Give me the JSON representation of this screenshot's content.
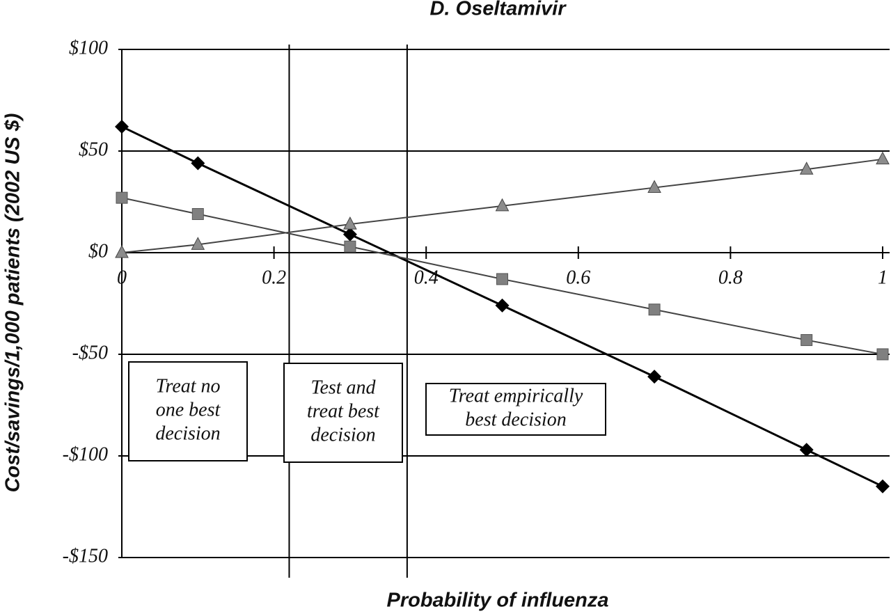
{
  "chart_data": {
    "type": "line",
    "title": "D. Oseltamivir",
    "x_label": "Probability of influenza",
    "y_label": "Cost/savings/1,000 patients (2002 US $)",
    "x": [
      0,
      0.1,
      0.3,
      0.5,
      0.7,
      0.9,
      1
    ],
    "series": [
      {
        "color": "#000000",
        "marker": "diamond",
        "values": [
          62,
          44,
          9,
          -26,
          -61,
          -97,
          -115
        ]
      },
      {
        "color": "#808080",
        "marker": "square",
        "values": [
          27,
          19,
          3,
          -13,
          -28,
          -43,
          -50
        ]
      },
      {
        "color": "#8c8c8c",
        "marker": "triangle",
        "values": [
          0,
          4,
          14,
          23,
          32,
          41,
          46
        ]
      }
    ],
    "xlim": [
      0,
      1
    ],
    "xticks": [
      0,
      0.2,
      0.4,
      0.6,
      0.8,
      1
    ],
    "ylim": [
      -150,
      100
    ],
    "yticks": [
      {
        "value": -150,
        "label": "-$150"
      },
      {
        "value": -100,
        "label": "-$100"
      },
      {
        "value": -50,
        "label": "-$50"
      },
      {
        "value": 0,
        "label": "$0"
      },
      {
        "value": 50,
        "label": "$50"
      },
      {
        "value": 100,
        "label": "$100"
      }
    ],
    "grid": true,
    "thresholds": [
      0.22,
      0.375
    ],
    "annotations": [
      {
        "lines": [
          "Treat no",
          "one best",
          "decision"
        ]
      },
      {
        "lines": [
          "Test and",
          "treat best",
          "decision"
        ]
      },
      {
        "lines": [
          "Treat empirically",
          "best decision"
        ]
      }
    ]
  }
}
